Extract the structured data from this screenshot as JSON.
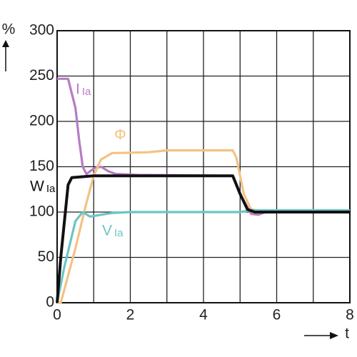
{
  "chart_data": {
    "type": "line",
    "y_label": "%",
    "x_label": "t",
    "xlim": [
      0,
      8
    ],
    "ylim": [
      0,
      300
    ],
    "xticks": [
      0,
      2,
      4,
      6,
      8
    ],
    "x_minor_ticks": [
      1,
      3,
      5,
      7
    ],
    "yticks": [
      0,
      50,
      100,
      150,
      200,
      250,
      300
    ],
    "grid": true,
    "series": [
      {
        "name": "I",
        "subscript": "Ia",
        "color": "#b77cc4",
        "x": [
          0,
          0.3,
          0.5,
          0.6,
          0.7,
          0.8,
          1.0,
          1.2,
          1.4,
          1.6,
          2.2,
          4.8,
          5.0,
          5.3,
          5.5,
          5.7,
          8
        ],
        "values": [
          247,
          247,
          215,
          180,
          150,
          142,
          148,
          150,
          145,
          142,
          141,
          140,
          120,
          98,
          97,
          100,
          100
        ]
      },
      {
        "name": "Φ",
        "color": "#f3c285",
        "x": [
          0,
          0.1,
          0.5,
          0.8,
          1.0,
          1.2,
          1.5,
          2.5,
          3,
          4.8,
          4.9,
          5.1,
          5.3,
          5.6,
          8
        ],
        "values": [
          0,
          0,
          60,
          110,
          140,
          158,
          165,
          166,
          168,
          168,
          160,
          120,
          103,
          101,
          101
        ]
      },
      {
        "name": "V",
        "subscript": "Ia",
        "color": "#6cc5c4",
        "x": [
          0,
          0.2,
          0.5,
          0.7,
          0.9,
          1.2,
          1.5,
          2,
          5,
          5.3,
          8
        ],
        "values": [
          0,
          40,
          90,
          100,
          95,
          97,
          99,
          100,
          100,
          102,
          102
        ]
      },
      {
        "name": "W",
        "subscript": "Ia",
        "color": "#111111",
        "x": [
          0,
          0.1,
          0.3,
          0.4,
          1,
          2,
          4.8,
          5.0,
          5.2,
          5.4,
          8
        ],
        "values": [
          0,
          50,
          130,
          138,
          140,
          140,
          140,
          120,
          103,
          100,
          100
        ]
      }
    ]
  }
}
